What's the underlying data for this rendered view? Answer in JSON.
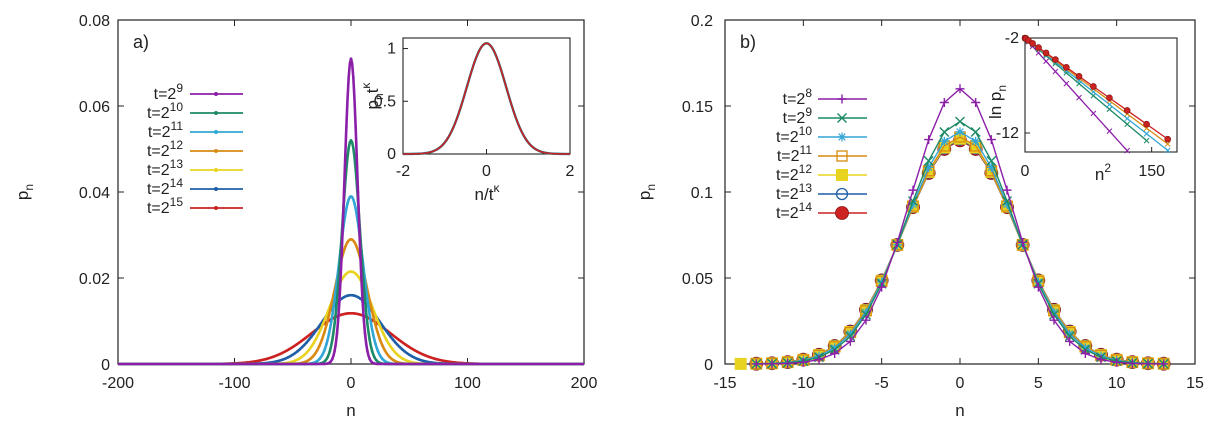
{
  "chart_data": [
    {
      "id": "a",
      "type": "line",
      "panel_label": "a)",
      "xlabel": "n",
      "ylabel_base": "p",
      "ylabel_sub": "n",
      "xlim": [
        -200,
        200
      ],
      "ylim": [
        0,
        0.08
      ],
      "xticks": [
        "-200",
        "-100",
        "0",
        "100",
        "200"
      ],
      "yticks": [
        "0",
        "0.02",
        "0.04",
        "0.06",
        "0.08"
      ],
      "series": [
        {
          "name": "t=2^9",
          "base": "t=2",
          "exp": "9",
          "peak": 0.071,
          "sigma": 5.6,
          "color": "#8b1fa8"
        },
        {
          "name": "t=2^10",
          "base": "t=2",
          "exp": "10",
          "peak": 0.052,
          "sigma": 7.6,
          "color": "#1c8a66"
        },
        {
          "name": "t=2^11",
          "base": "t=2",
          "exp": "11",
          "peak": 0.039,
          "sigma": 10.2,
          "color": "#32a6d6"
        },
        {
          "name": "t=2^12",
          "base": "t=2",
          "exp": "12",
          "peak": 0.029,
          "sigma": 13.8,
          "color": "#d98a12"
        },
        {
          "name": "t=2^13",
          "base": "t=2",
          "exp": "13",
          "peak": 0.0215,
          "sigma": 18.6,
          "color": "#e8d420"
        },
        {
          "name": "t=2^14",
          "base": "t=2",
          "exp": "14",
          "peak": 0.016,
          "sigma": 25,
          "color": "#1f5fa8"
        },
        {
          "name": "t=2^15",
          "base": "t=2",
          "exp": "15",
          "peak": 0.0118,
          "sigma": 33.8,
          "color": "#cc2222"
        }
      ],
      "inset": {
        "xlabel_base": "n/t",
        "xlabel_sup": "κ",
        "ylabel_base": "p",
        "ylabel_sub": "n",
        "ylabel_mid": "t",
        "ylabel_sup": "κ",
        "xlim": [
          -2,
          2
        ],
        "ylim": [
          0,
          1.1
        ],
        "xticks": [
          "-2",
          "0",
          "2"
        ],
        "yticks": [
          "0",
          "0.5",
          "1"
        ],
        "peak": 1.05,
        "sigma": 0.47
      }
    },
    {
      "id": "b",
      "type": "line",
      "panel_label": "b)",
      "xlabel": "n",
      "ylabel_base": "p",
      "ylabel_sub": "n",
      "xlim": [
        -15,
        15
      ],
      "ylim": [
        0,
        0.2
      ],
      "xticks": [
        "-15",
        "-10",
        "-5",
        "0",
        "5",
        "10",
        "15"
      ],
      "yticks": [
        "0",
        "0.05",
        "0.1",
        "0.15",
        "0.2"
      ],
      "series": [
        {
          "name": "t=2^8",
          "base": "t=2",
          "exp": "8",
          "marker": "plus",
          "peak": 0.16,
          "var": 9.8,
          "color": "#8b1fa8"
        },
        {
          "name": "t=2^9",
          "base": "t=2",
          "exp": "9",
          "marker": "cross",
          "peak": 0.141,
          "var": 11.3,
          "color": "#1c8a66"
        },
        {
          "name": "t=2^10",
          "base": "t=2",
          "exp": "10",
          "marker": "star",
          "peak": 0.135,
          "var": 12.0,
          "color": "#32a6d6"
        },
        {
          "name": "t=2^11",
          "base": "t=2",
          "exp": "11",
          "marker": "open-square",
          "peak": 0.132,
          "var": 12.4,
          "color": "#d98a12"
        },
        {
          "name": "t=2^12",
          "base": "t=2",
          "exp": "12",
          "marker": "filled-square",
          "peak": 0.131,
          "var": 12.55,
          "color": "#e8d420"
        },
        {
          "name": "t=2^13",
          "base": "t=2",
          "exp": "13",
          "marker": "open-circle",
          "peak": 0.1305,
          "var": 12.65,
          "color": "#1f5fa8"
        },
        {
          "name": "t=2^14",
          "base": "t=2",
          "exp": "14",
          "marker": "filled-circle",
          "peak": 0.13,
          "var": 12.7,
          "color": "#cc2222"
        }
      ],
      "inset": {
        "xlabel_base": "n",
        "xlabel_sup": "2",
        "ylabel": "ln p",
        "ylabel_sub": "n",
        "xlim": [
          0,
          180
        ],
        "ylim": [
          -14,
          -2
        ],
        "xticks": [
          "0",
          "150"
        ],
        "yticks": [
          "-2",
          "-12"
        ],
        "lines": [
          {
            "slope": -0.098,
            "color": "#8b1fa8",
            "maxn": 11
          },
          {
            "slope": -0.075,
            "color": "#1c8a66",
            "maxn": 12
          },
          {
            "slope": -0.07,
            "color": "#32a6d6",
            "maxn": 13
          },
          {
            "slope": -0.066,
            "color": "#d98a12",
            "maxn": 13
          },
          {
            "slope": -0.063,
            "color": "#cc2222",
            "maxn": 13
          }
        ]
      }
    }
  ]
}
